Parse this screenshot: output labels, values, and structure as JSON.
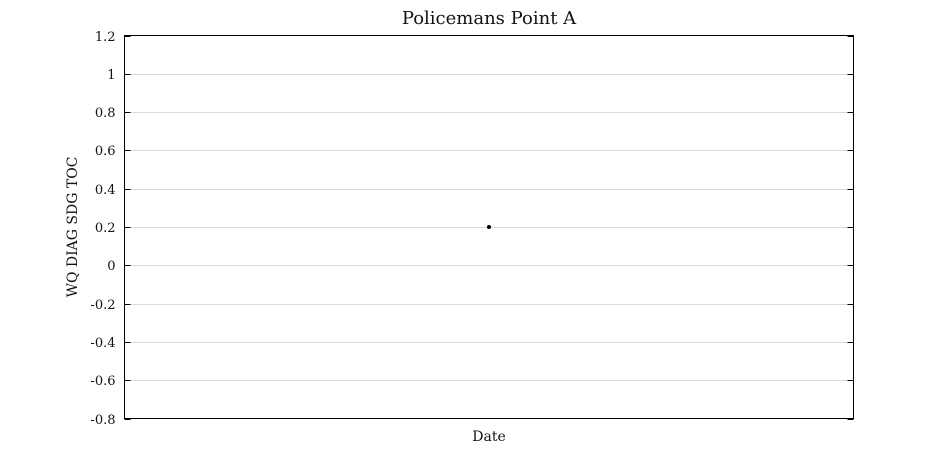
{
  "chart_data": {
    "type": "scatter",
    "title": "Policemans Point A",
    "xlabel": "Date",
    "ylabel": "WQ DIAG SDG TOC",
    "ylim": [
      -0.8,
      1.2
    ],
    "yticks": [
      -0.8,
      -0.6,
      -0.4,
      -0.2,
      0,
      0.2,
      0.4,
      0.6,
      0.8,
      1,
      1.2
    ],
    "ytick_labels": [
      "-0.8",
      "-0.6",
      "-0.4",
      "-0.2",
      "0",
      "0.2",
      "0.4",
      "0.6",
      "0.8",
      "1",
      "1.2"
    ],
    "grid": true,
    "points": [
      {
        "x": 0.5,
        "y": 0.2
      }
    ],
    "colors": {
      "marker": "#000000",
      "grid": "#d9d9d9",
      "frame": "#000000"
    }
  }
}
